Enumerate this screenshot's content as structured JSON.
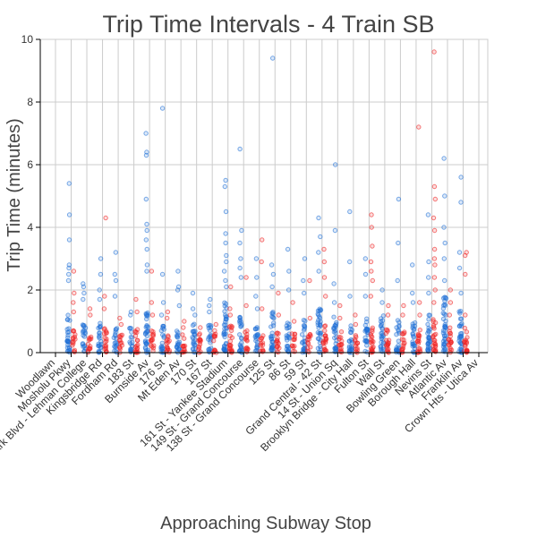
{
  "chart_data": {
    "type": "scatter",
    "title": "Trip Time Intervals - 4 Train SB",
    "xlabel": "Approaching Subway Stop",
    "ylabel": "Trip Time (minutes)",
    "ylim": [
      0,
      10
    ],
    "yticks": [
      0,
      2,
      4,
      6,
      8,
      10
    ],
    "grid": true,
    "colors": {
      "blue": "#1f6fd6",
      "red": "#ee2222"
    },
    "categories": [
      "Woodlawn",
      "Mosholu Pkwy",
      "Bedford Park Blvd - Lehman College",
      "Kingsbridge Rd",
      "Fordham Rd",
      "183 St",
      "Burnside Av",
      "176 St",
      "Mt Eden Av",
      "170 St",
      "167 St",
      "161 St - Yankee Stadium",
      "149 St - Grand Concourse",
      "138 St - Grand Concourse",
      "125 St",
      "86 St",
      "59 St",
      "Grand Central - 42 St",
      "14 St - Union Sq",
      "Brooklyn Bridge - City Hall",
      "Fulton St",
      "Wall St",
      "Bowling Green",
      "Borough Hall",
      "Nevins St",
      "Atlantic Av",
      "Franklin Av",
      "Crown Hts - Utica Av"
    ],
    "series": [
      {
        "color": "blue",
        "outliers": [
          [],
          [
            5.4,
            4.4,
            3.6,
            2.8,
            2.7,
            2.5,
            2.3
          ],
          [
            2.2,
            2.1,
            1.9,
            1.7
          ],
          [
            3.0,
            2.5,
            2.0,
            1.7
          ],
          [
            3.2,
            2.5,
            2.3,
            1.8
          ],
          [
            1.3,
            1.2
          ],
          [
            7.0,
            6.4,
            6.3,
            4.9,
            4.1,
            3.9,
            3.6,
            3.3,
            2.8,
            2.6
          ],
          [
            7.8,
            2.5,
            1.6,
            1.2
          ],
          [
            2.6,
            2.1,
            2.0,
            1.5
          ],
          [
            1.9,
            1.4,
            1.2
          ],
          [
            1.7,
            1.5,
            1.3
          ],
          [
            5.5,
            5.3,
            4.5,
            3.8,
            3.5,
            3.1,
            2.9,
            2.6,
            2.3,
            2.1
          ],
          [
            6.5,
            3.9,
            3.5,
            3.0,
            2.7,
            2.4
          ],
          [
            3.0,
            2.4,
            1.8,
            1.4
          ],
          [
            9.4,
            2.8,
            2.5,
            2.1
          ],
          [
            3.3,
            2.6,
            2.0
          ],
          [
            3.0,
            2.3,
            1.9
          ],
          [
            4.3,
            3.7,
            3.2,
            2.6
          ],
          [
            6.0,
            3.9,
            2.2,
            1.6
          ],
          [
            4.5,
            2.9,
            1.8
          ],
          [
            3.0,
            2.5,
            1.8
          ],
          [
            2.0,
            1.6
          ],
          [
            4.9,
            3.5,
            2.3
          ],
          [
            2.8,
            1.9,
            1.6
          ],
          [
            4.4,
            2.9,
            2.4,
            1.9
          ],
          [
            6.2,
            5.0,
            4.0,
            3.5,
            3.0,
            2.3
          ],
          [
            5.6,
            4.8,
            3.2,
            2.7,
            1.9
          ],
          []
        ],
        "bands": [
          0,
          1.2,
          0.9,
          1.0,
          0.8,
          0.8,
          1.4,
          0.9,
          0.9,
          1.0,
          0.9,
          1.7,
          1.2,
          0.9,
          1.3,
          1.0,
          1.1,
          1.4,
          1.2,
          1.0,
          1.1,
          1.2,
          1.1,
          1.0,
          1.3,
          1.8,
          1.4,
          0
        ]
      },
      {
        "color": "red",
        "outliers": [
          [],
          [
            2.6,
            1.9,
            1.6,
            1.3
          ],
          [
            1.4,
            1.2
          ],
          [
            4.3,
            1.8,
            1.4
          ],
          [
            1.1,
            0.9
          ],
          [
            1.7,
            1.3
          ],
          [
            2.6,
            1.6,
            1.2
          ],
          [
            1.3,
            1.1
          ],
          [
            1.0,
            0.8
          ],
          [
            0.8,
            0.6
          ],
          [
            0.9,
            0.7
          ],
          [
            2.1,
            1.4,
            1.2
          ],
          [
            2.4,
            1.5
          ],
          [
            3.6,
            2.9,
            1.4
          ],
          [
            1.9,
            1.2
          ],
          [
            1.6,
            1.0
          ],
          [
            2.3,
            1.1
          ],
          [
            3.3,
            2.9,
            2.4,
            1.8
          ],
          [
            1.5,
            1.1
          ],
          [
            1.2,
            0.9
          ],
          [
            4.4,
            4.0,
            3.4,
            2.9,
            2.6,
            2.3,
            1.8
          ],
          [
            1.5,
            1.2
          ],
          [
            1.5,
            1.2
          ],
          [
            7.2,
            1.6,
            1.2
          ],
          [
            9.6,
            5.3,
            4.9,
            4.3,
            3.9,
            3.3,
            3.0,
            2.8,
            2.4,
            2.0,
            1.6
          ],
          [
            2.0,
            1.6,
            1.2
          ],
          [
            3.2,
            3.1,
            2.5,
            1.2
          ],
          []
        ],
        "bands": [
          0,
          0.7,
          0.6,
          0.8,
          0.6,
          0.8,
          0.7,
          0.7,
          0.6,
          0.6,
          0.6,
          0.9,
          0.7,
          0.6,
          0.7,
          0.6,
          0.6,
          0.9,
          0.7,
          0.6,
          0.9,
          0.8,
          0.7,
          0.8,
          1.1,
          0.8,
          0.9,
          0
        ]
      }
    ]
  }
}
